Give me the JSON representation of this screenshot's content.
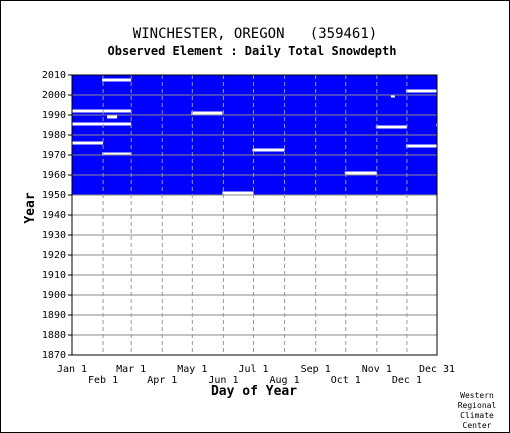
{
  "chart_data": {
    "type": "heatmap",
    "title": "WINCHESTER, OREGON   (359461)",
    "subtitle": "Observed Element : Daily Total Snowdepth",
    "xlabel": "Day of Year",
    "ylabel": "Year",
    "xlim": [
      1,
      365
    ],
    "ylim": [
      1870,
      2010
    ],
    "y_ticks": [
      1870,
      1880,
      1890,
      1900,
      1910,
      1920,
      1930,
      1940,
      1950,
      1960,
      1970,
      1980,
      1990,
      2000,
      2010
    ],
    "x_ticks_top_row": [
      {
        "label": "Jan 1",
        "day": 1
      },
      {
        "label": "Mar 1",
        "day": 60
      },
      {
        "label": "May 1",
        "day": 121
      },
      {
        "label": "Jul 1",
        "day": 182
      },
      {
        "label": "Sep 1",
        "day": 244
      },
      {
        "label": "Nov 1",
        "day": 305
      },
      {
        "label": "Dec 31",
        "day": 365
      }
    ],
    "x_ticks_bottom_row": [
      {
        "label": "Feb 1",
        "day": 32
      },
      {
        "label": "Apr 1",
        "day": 91
      },
      {
        "label": "Jun 1",
        "day": 152
      },
      {
        "label": "Aug 1",
        "day": 213
      },
      {
        "label": "Oct 1",
        "day": 274
      },
      {
        "label": "Dec 1",
        "day": 335
      }
    ],
    "grid": true,
    "data_color": "#0000ff",
    "background_color": "#ffffff",
    "coverage": {
      "day_start": 1,
      "day_end": 365,
      "year_start": 1950,
      "year_end": 2010
    },
    "missing_segments": [
      {
        "year": 2007.5,
        "day_start": 32,
        "day_end": 59
      },
      {
        "year": 2002,
        "day_start": 335,
        "day_end": 365
      },
      {
        "year": 1999.5,
        "day_start": 320,
        "day_end": 322
      },
      {
        "year": 1992,
        "day_start": 1,
        "day_end": 59
      },
      {
        "year": 1991,
        "day_start": 121,
        "day_end": 150
      },
      {
        "year": 1989,
        "day_start": 37,
        "day_end": 45
      },
      {
        "year": 1985.5,
        "day_start": 1,
        "day_end": 59
      },
      {
        "year": 1985,
        "day_start": 365,
        "day_end": 365
      },
      {
        "year": 1984,
        "day_start": 305,
        "day_end": 334
      },
      {
        "year": 1976,
        "day_start": 1,
        "day_end": 31
      },
      {
        "year": 1974.5,
        "day_start": 335,
        "day_end": 365
      },
      {
        "year": 1972.5,
        "day_start": 182,
        "day_end": 212
      },
      {
        "year": 1970.5,
        "day_start": 32,
        "day_end": 59
      },
      {
        "year": 1961,
        "day_start": 274,
        "day_end": 304
      },
      {
        "year": 1951,
        "day_start": 152,
        "day_end": 181
      },
      {
        "year": 1949.5,
        "day_start": 340,
        "day_end": 365
      }
    ]
  },
  "credit": [
    "Western",
    "Regional",
    "Climate",
    "Center"
  ]
}
